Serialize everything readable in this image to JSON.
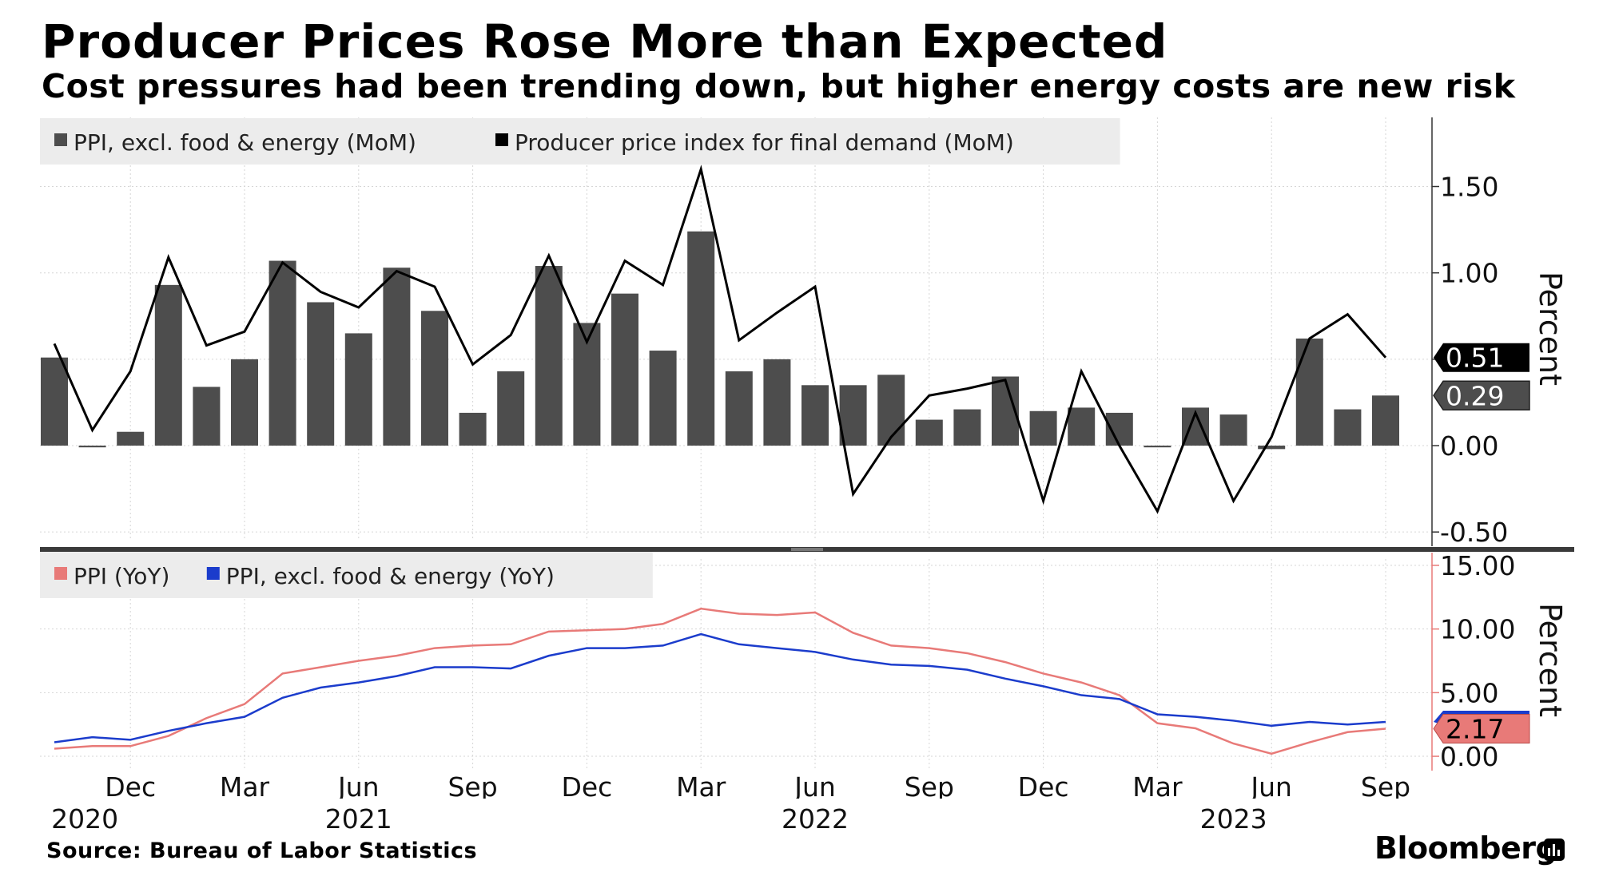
{
  "title": "Producer Prices Rose More than Expected",
  "subtitle": "Cost pressures had been trending down, but higher energy costs are new risk",
  "source": "Source: Bureau of Labor Statistics",
  "brand": "Bloomberg",
  "colors": {
    "bar": "#4d4d4d",
    "mom_line": "#000000",
    "ppi_yoy": "#e87a78",
    "core_yoy": "#1b3ccc"
  },
  "chart_data": [
    {
      "type": "bar",
      "panel": "top",
      "ylabel": "Percent",
      "ylim": [
        -0.55,
        1.9
      ],
      "yticks": [
        "1.50",
        "1.00",
        "0.50",
        "0.00",
        "-0.50"
      ],
      "ytick_values": [
        1.5,
        1.0,
        0.5,
        0.0,
        -0.5
      ],
      "legend": [
        "PPI, excl. food & energy (MoM)",
        "Producer price index for final demand (MoM)"
      ],
      "months": [
        "Oct 2020",
        "Nov 2020",
        "Dec 2020",
        "Jan 2021",
        "Feb 2021",
        "Mar 2021",
        "Apr 2021",
        "May 2021",
        "Jun 2021",
        "Jul 2021",
        "Aug 2021",
        "Sep 2021",
        "Oct 2021",
        "Nov 2021",
        "Dec 2021",
        "Jan 2022",
        "Feb 2022",
        "Mar 2022",
        "Apr 2022",
        "May 2022",
        "Jun 2022",
        "Jul 2022",
        "Aug 2022",
        "Sep 2022",
        "Oct 2022",
        "Nov 2022",
        "Dec 2022",
        "Jan 2023",
        "Feb 2023",
        "Mar 2023",
        "Apr 2023",
        "May 2023",
        "Jun 2023",
        "Jul 2023",
        "Aug 2023",
        "Sep 2023"
      ],
      "series": [
        {
          "name": "PPI, excl. food & energy (MoM)",
          "kind": "bar",
          "values": [
            0.51,
            -0.01,
            0.08,
            0.93,
            0.34,
            0.5,
            1.07,
            0.83,
            0.65,
            1.03,
            0.78,
            0.19,
            0.43,
            1.04,
            0.71,
            0.88,
            0.55,
            1.24,
            0.43,
            0.5,
            0.35,
            0.35,
            0.41,
            0.15,
            0.21,
            0.4,
            0.2,
            0.22,
            0.19,
            -0.01,
            0.22,
            0.18,
            -0.02,
            0.62,
            0.21,
            0.29
          ],
          "last_label": "0.29"
        },
        {
          "name": "Producer price index for final demand (MoM)",
          "kind": "line",
          "values": [
            0.59,
            0.09,
            0.43,
            1.09,
            0.58,
            0.66,
            1.06,
            0.89,
            0.8,
            1.01,
            0.92,
            0.47,
            0.64,
            1.1,
            0.6,
            1.07,
            0.93,
            1.6,
            0.61,
            0.77,
            0.92,
            -0.28,
            0.05,
            0.29,
            0.33,
            0.38,
            -0.32,
            0.43,
            0.0,
            -0.38,
            0.19,
            -0.32,
            0.05,
            0.62,
            0.76,
            0.51
          ],
          "last_label": "0.51"
        }
      ]
    },
    {
      "type": "line",
      "panel": "bottom",
      "ylabel": "Percent",
      "ylim": [
        -1.0,
        15.5
      ],
      "yticks": [
        "15.00",
        "10.00",
        "5.00",
        "0.00"
      ],
      "ytick_values": [
        15,
        10,
        5,
        0
      ],
      "legend": [
        "PPI (YoY)",
        "PPI, excl. food & energy (YoY)"
      ],
      "xticks": [
        "Dec",
        "Mar",
        "Jun",
        "Sep",
        "Dec",
        "Mar",
        "Jun",
        "Sep",
        "Dec",
        "Mar",
        "Jun",
        "Sep"
      ],
      "xtick_index": [
        2,
        5,
        8,
        11,
        14,
        17,
        20,
        23,
        26,
        29,
        32,
        35
      ],
      "years": [
        "2020",
        "2021",
        "2022",
        "2023"
      ],
      "year_index": [
        0.8,
        8,
        20,
        31
      ],
      "series": [
        {
          "name": "PPI (YoY)",
          "values": [
            0.6,
            0.8,
            0.8,
            1.6,
            3.0,
            4.1,
            6.5,
            7.0,
            7.5,
            7.9,
            8.5,
            8.7,
            8.8,
            9.8,
            9.9,
            10.0,
            10.4,
            11.6,
            11.2,
            11.1,
            11.3,
            9.7,
            8.7,
            8.5,
            8.1,
            7.4,
            6.5,
            5.8,
            4.8,
            2.6,
            2.2,
            1.0,
            0.2,
            1.1,
            1.9,
            2.17
          ],
          "last_label": "2.17"
        },
        {
          "name": "PPI, excl. food & energy (YoY)",
          "values": [
            1.1,
            1.5,
            1.3,
            2.0,
            2.6,
            3.1,
            4.6,
            5.4,
            5.8,
            6.3,
            7.0,
            7.0,
            6.9,
            7.9,
            8.5,
            8.5,
            8.7,
            9.6,
            8.8,
            8.5,
            8.2,
            7.6,
            7.2,
            7.1,
            6.8,
            6.1,
            5.5,
            4.8,
            4.5,
            3.3,
            3.1,
            2.8,
            2.4,
            2.7,
            2.5,
            2.7
          ]
        }
      ]
    }
  ]
}
